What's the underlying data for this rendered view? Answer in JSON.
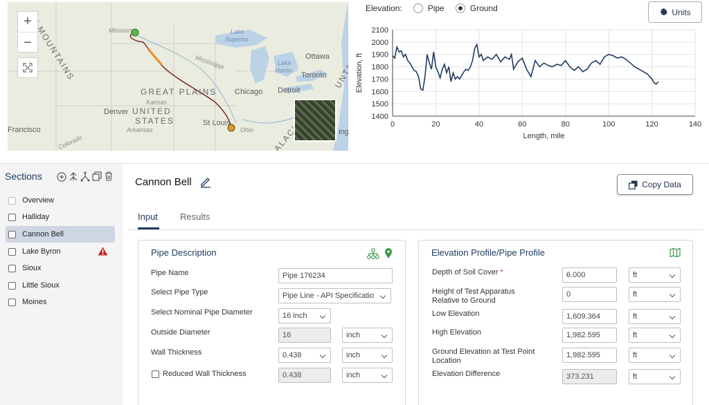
{
  "map": {
    "zoom_in": "+",
    "zoom_out": "−",
    "labels": {
      "mountains": "Y MOUNTAINS",
      "great_plains": "GREAT PLAINS",
      "united": "UNITED",
      "states": "STATES",
      "lake_superior_1": "Lake",
      "lake_superior_2": "Superior",
      "lake_huron_1": "Lake",
      "lake_huron_2": "Huron",
      "ottawa": "Ottawa",
      "toronto": "Toronto",
      "chicago": "Chicago",
      "detroit": "Detroit",
      "denver": "Denver",
      "stlouis": "St Louis",
      "francisco": "Francisco",
      "missouri": "Missouri",
      "mississippi": "Mississippi",
      "ohio": "Ohio",
      "kansas": "Kansas",
      "arkansas": "Arkansas",
      "colorado": "Colorado",
      "montana": "UNTA",
      "appalachian": "ALACH",
      "ing": "ing"
    }
  },
  "elevation": {
    "label": "Elevation:",
    "options": [
      "Pipe",
      "Ground"
    ],
    "selected": "Ground",
    "units_button": "Units"
  },
  "chart_data": {
    "type": "line",
    "xlabel": "Length, mile",
    "ylabel": "Elevation, ft",
    "xlim": [
      0,
      140
    ],
    "ylim": [
      1400,
      2100
    ],
    "xticks": [
      0,
      20,
      40,
      60,
      80,
      100,
      120,
      140
    ],
    "yticks": [
      1400,
      1500,
      1600,
      1700,
      1800,
      1900,
      2000,
      2100
    ],
    "grid": true,
    "series": [
      {
        "x": [
          0,
          1,
          2,
          3,
          4,
          5,
          6,
          7,
          8,
          9,
          10,
          11,
          12,
          13,
          14,
          15,
          16,
          17,
          18,
          19,
          20,
          21,
          22,
          23,
          24,
          25,
          26,
          27,
          28,
          29,
          30,
          31,
          32,
          33,
          34,
          35,
          36,
          37,
          38,
          39,
          40,
          41,
          42,
          44,
          46,
          48,
          50,
          52,
          54,
          55,
          56,
          58,
          60,
          62,
          64,
          66,
          68,
          70,
          72,
          74,
          76,
          78,
          80,
          82,
          84,
          86,
          88,
          90,
          92,
          94,
          96,
          98,
          100,
          102,
          104,
          106,
          108,
          110,
          112,
          114,
          116,
          118,
          119,
          120,
          121,
          122,
          123
        ],
        "y": [
          1890,
          1870,
          1960,
          1920,
          1930,
          1880,
          1900,
          1850,
          1830,
          1800,
          1770,
          1760,
          1720,
          1620,
          1610,
          1720,
          1900,
          1830,
          1780,
          1920,
          1800,
          1760,
          1710,
          1780,
          1820,
          1750,
          1800,
          1680,
          1750,
          1700,
          1720,
          1700,
          1730,
          1760,
          1780,
          1770,
          1800,
          1850,
          1950,
          1980,
          1880,
          1900,
          1850,
          1880,
          1860,
          1900,
          1840,
          1880,
          1860,
          1900,
          1780,
          1840,
          1870,
          1780,
          1720,
          1850,
          1800,
          1830,
          1810,
          1800,
          1820,
          1810,
          1850,
          1800,
          1770,
          1800,
          1760,
          1780,
          1830,
          1850,
          1820,
          1880,
          1900,
          1890,
          1870,
          1880,
          1860,
          1830,
          1800,
          1780,
          1760,
          1740,
          1720,
          1700,
          1670,
          1660,
          1680
        ]
      }
    ]
  },
  "sidebar": {
    "title": "Sections",
    "items": [
      {
        "label": "Overview",
        "warn": false
      },
      {
        "label": "Halliday",
        "warn": false
      },
      {
        "label": "Cannon Bell",
        "warn": false
      },
      {
        "label": "Lake Byron",
        "warn": true
      },
      {
        "label": "Sioux",
        "warn": false
      },
      {
        "label": "Little Sioux",
        "warn": false
      },
      {
        "label": "Moines",
        "warn": false
      }
    ]
  },
  "main": {
    "section_name": "Cannon Bell",
    "copy_button": "Copy Data",
    "tabs": [
      "Input",
      "Results"
    ]
  },
  "pipe_description": {
    "title": "Pipe Description",
    "pipe_name_label": "Pipe Name",
    "pipe_name_value": "Pipe 176234",
    "pipe_type_label": "Select Pipe Type",
    "pipe_type_value": "Pipe Line - API Specificatio",
    "diameter_label": "Select Nominal Pipe Diameter",
    "diameter_value": "16 inch",
    "outside_label": "Outside Diameter",
    "outside_value": "16",
    "outside_unit": "inch",
    "wall_label": "Wall Thickness",
    "wall_value": "0.438",
    "wall_unit": "inch",
    "reduced_label": "Reduced Wall Thickness",
    "reduced_value": "0.438",
    "reduced_unit": "inch"
  },
  "elevation_profile": {
    "title": "Elevation Profile/Pipe Profile",
    "soil_label": "Depth of Soil Cover",
    "soil_req": "*",
    "soil_value": "6.000",
    "soil_unit": "ft",
    "test_label_1": "Height of Test Apparatus",
    "test_label_2": "Relative to Ground",
    "test_value": "0",
    "test_unit": "ft",
    "low_label": "Low Elevation",
    "low_value": "1,609.364",
    "low_unit": "ft",
    "high_label": "High Elevation",
    "high_value": "1,982.595",
    "high_unit": "ft",
    "ground_label_1": "Ground Elevation at Test Point",
    "ground_label_2": "Location",
    "ground_value": "1,982.595",
    "ground_unit": "ft",
    "diff_label": "Elevation Difference",
    "diff_value": "373.231",
    "diff_unit": "ft"
  }
}
